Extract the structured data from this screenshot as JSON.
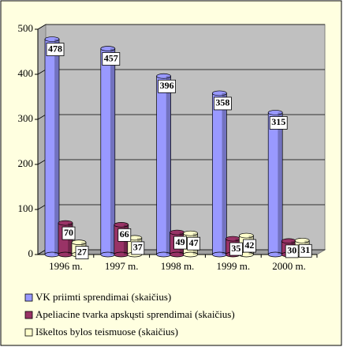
{
  "chart_data": {
    "type": "bar",
    "categories": [
      "1996 m.",
      "1997 m.",
      "1998 m.",
      "1999 m.",
      "2000 m."
    ],
    "series": [
      {
        "name": "VK priimti sprendimai (skaičius)",
        "color": "#9999ff",
        "values": [
          478,
          457,
          396,
          358,
          315
        ]
      },
      {
        "name": "Apeliacine tvarka apskųsti sprendimai (skaičius)",
        "color": "#993366",
        "values": [
          70,
          66,
          49,
          35,
          30
        ]
      },
      {
        "name": "Iškeltos bylos teismuose (skaičius)",
        "color": "#ffffcc",
        "values": [
          27,
          37,
          47,
          42,
          31
        ]
      }
    ],
    "ylim": [
      0,
      500
    ],
    "yticks": [
      0,
      100,
      200,
      300,
      400,
      500
    ],
    "grid": true,
    "legend": "bottom"
  }
}
